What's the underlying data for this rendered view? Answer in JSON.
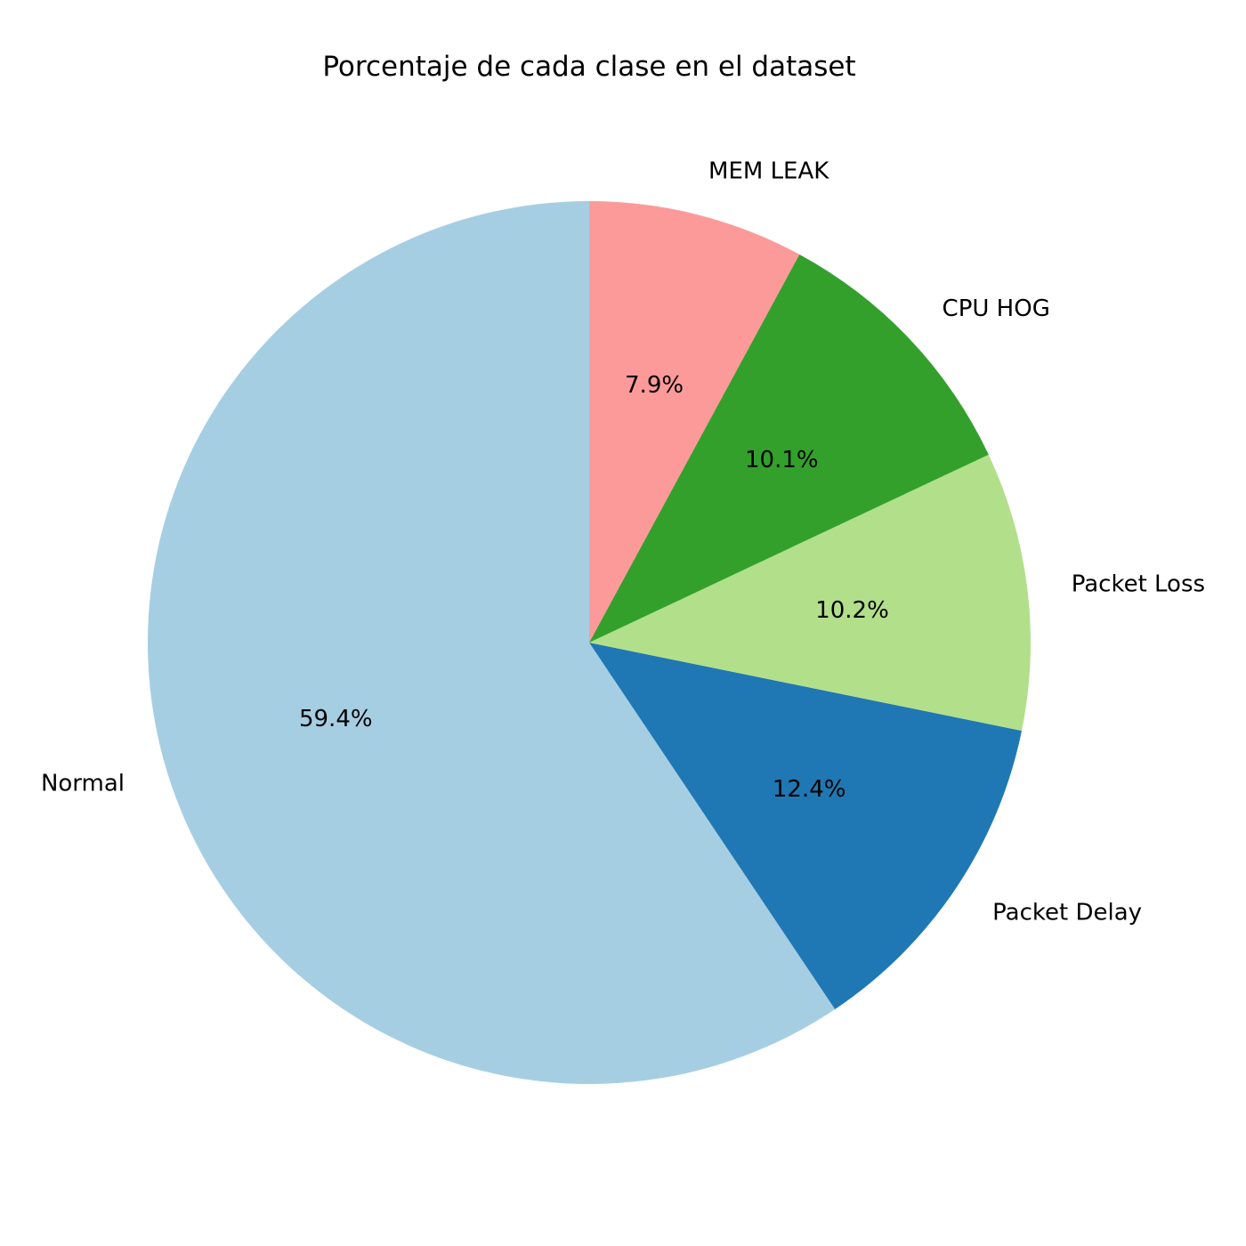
{
  "chart_data": {
    "type": "pie",
    "title": "Porcentaje de cada clase en el dataset",
    "start_angle_deg": 90,
    "direction": "counterclockwise",
    "slices": [
      {
        "label": "Normal",
        "value": 59.4,
        "pct_label": "59.4%",
        "color": "#a6cee3"
      },
      {
        "label": "Packet Delay",
        "value": 12.4,
        "pct_label": "12.4%",
        "color": "#1f78b4"
      },
      {
        "label": "Packet Loss",
        "value": 10.2,
        "pct_label": "10.2%",
        "color": "#b2df8a"
      },
      {
        "label": "CPU HOG",
        "value": 10.1,
        "pct_label": "10.1%",
        "color": "#33a02c"
      },
      {
        "label": "MEM LEAK",
        "value": 7.9,
        "pct_label": "7.9%",
        "color": "#fb9a99"
      }
    ]
  }
}
